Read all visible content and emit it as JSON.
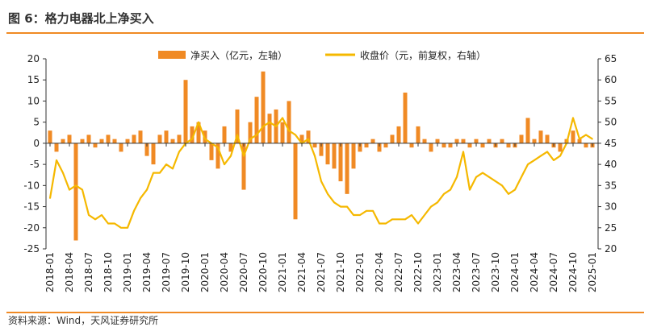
{
  "figure": {
    "title": "图 6：格力电器北上净买入",
    "source": "资料来源：Wind，天风证券研究所"
  },
  "colors": {
    "bar": "#f08a24",
    "line": "#f5b800",
    "rule": "#f08a24",
    "axis": "#333333"
  },
  "chart_data": {
    "type": "bar",
    "title": "",
    "xlabel": "",
    "ylabel": "",
    "grid": false,
    "legend_position": "top",
    "y_left": {
      "min": -25,
      "max": 20,
      "step": 5
    },
    "y_right": {
      "min": 20,
      "max": 65,
      "step": 5
    },
    "x_ticks": [
      "2018-01",
      "2018-04",
      "2018-07",
      "2018-10",
      "2019-01",
      "2019-04",
      "2019-07",
      "2019-10",
      "2020-01",
      "2020-04",
      "2020-07",
      "2020-10",
      "2021-01",
      "2021-04",
      "2021-07",
      "2021-10",
      "2022-01",
      "2022-04",
      "2022-07",
      "2022-10",
      "2023-01",
      "2023-04",
      "2023-07",
      "2023-10",
      "2024-01",
      "2024-04",
      "2024-07",
      "2024-10",
      "2025-01"
    ],
    "series": [
      {
        "name": "净买入（亿元，左轴）",
        "type": "bar",
        "axis": "left",
        "points": [
          [
            "2018-01",
            3
          ],
          [
            "2018-02",
            -2
          ],
          [
            "2018-03",
            1
          ],
          [
            "2018-04",
            2
          ],
          [
            "2018-05",
            -23
          ],
          [
            "2018-06",
            1
          ],
          [
            "2018-07",
            2
          ],
          [
            "2018-08",
            -1
          ],
          [
            "2018-09",
            1
          ],
          [
            "2018-10",
            2
          ],
          [
            "2018-11",
            1
          ],
          [
            "2018-12",
            -2
          ],
          [
            "2019-01",
            1
          ],
          [
            "2019-02",
            2
          ],
          [
            "2019-03",
            3
          ],
          [
            "2019-04",
            -3
          ],
          [
            "2019-05",
            -5
          ],
          [
            "2019-06",
            2
          ],
          [
            "2019-07",
            3
          ],
          [
            "2019-08",
            1
          ],
          [
            "2019-09",
            2
          ],
          [
            "2019-10",
            15
          ],
          [
            "2019-11",
            4
          ],
          [
            "2019-12",
            5
          ],
          [
            "2020-01",
            3
          ],
          [
            "2020-02",
            -4
          ],
          [
            "2020-03",
            -6
          ],
          [
            "2020-04",
            4
          ],
          [
            "2020-05",
            -2
          ],
          [
            "2020-06",
            8
          ],
          [
            "2020-07",
            -11
          ],
          [
            "2020-08",
            5
          ],
          [
            "2020-09",
            11
          ],
          [
            "2020-10",
            17
          ],
          [
            "2020-11",
            7
          ],
          [
            "2020-12",
            8
          ],
          [
            "2021-01",
            5
          ],
          [
            "2021-02",
            10
          ],
          [
            "2021-03",
            -18
          ],
          [
            "2021-04",
            2
          ],
          [
            "2021-05",
            3
          ],
          [
            "2021-06",
            -1
          ],
          [
            "2021-07",
            -3
          ],
          [
            "2021-08",
            -5
          ],
          [
            "2021-09",
            -6
          ],
          [
            "2021-10",
            -9
          ],
          [
            "2021-11",
            -12
          ],
          [
            "2021-12",
            -6
          ],
          [
            "2022-01",
            -2
          ],
          [
            "2022-02",
            -1
          ],
          [
            "2022-03",
            1
          ],
          [
            "2022-04",
            -2
          ],
          [
            "2022-05",
            -1
          ],
          [
            "2022-06",
            2
          ],
          [
            "2022-07",
            4
          ],
          [
            "2022-08",
            12
          ],
          [
            "2022-09",
            -1
          ],
          [
            "2022-10",
            4
          ],
          [
            "2022-11",
            1
          ],
          [
            "2022-12",
            -2
          ],
          [
            "2023-01",
            1
          ],
          [
            "2023-02",
            -1
          ],
          [
            "2023-03",
            -1
          ],
          [
            "2023-04",
            1
          ],
          [
            "2023-05",
            1
          ],
          [
            "2023-06",
            -1
          ],
          [
            "2023-07",
            1
          ],
          [
            "2023-08",
            -1
          ],
          [
            "2023-09",
            1
          ],
          [
            "2023-10",
            -1
          ],
          [
            "2023-11",
            1
          ],
          [
            "2023-12",
            -1
          ],
          [
            "2024-01",
            -1
          ],
          [
            "2024-02",
            2
          ],
          [
            "2024-03",
            6
          ],
          [
            "2024-04",
            1
          ],
          [
            "2024-05",
            3
          ],
          [
            "2024-06",
            2
          ],
          [
            "2024-07",
            -1
          ],
          [
            "2024-08",
            -2
          ],
          [
            "2024-09",
            1
          ],
          [
            "2024-10",
            3
          ],
          [
            "2024-11",
            1
          ],
          [
            "2024-12",
            -1
          ],
          [
            "2025-01",
            -1
          ]
        ]
      },
      {
        "name": "收盘价（元，前复权，右轴）",
        "type": "line",
        "axis": "right",
        "points": [
          [
            "2018-01",
            32
          ],
          [
            "2018-02",
            41
          ],
          [
            "2018-03",
            38
          ],
          [
            "2018-04",
            34
          ],
          [
            "2018-05",
            35
          ],
          [
            "2018-06",
            34
          ],
          [
            "2018-07",
            28
          ],
          [
            "2018-08",
            27
          ],
          [
            "2018-09",
            28
          ],
          [
            "2018-10",
            26
          ],
          [
            "2018-11",
            26
          ],
          [
            "2018-12",
            25
          ],
          [
            "2019-01",
            25
          ],
          [
            "2019-02",
            29
          ],
          [
            "2019-03",
            32
          ],
          [
            "2019-04",
            34
          ],
          [
            "2019-05",
            38
          ],
          [
            "2019-06",
            38
          ],
          [
            "2019-07",
            40
          ],
          [
            "2019-08",
            39
          ],
          [
            "2019-09",
            43
          ],
          [
            "2019-10",
            45
          ],
          [
            "2019-11",
            46
          ],
          [
            "2019-12",
            50
          ],
          [
            "2020-01",
            46
          ],
          [
            "2020-02",
            45
          ],
          [
            "2020-03",
            44
          ],
          [
            "2020-04",
            40
          ],
          [
            "2020-05",
            42
          ],
          [
            "2020-06",
            47
          ],
          [
            "2020-07",
            42
          ],
          [
            "2020-08",
            46
          ],
          [
            "2020-09",
            47
          ],
          [
            "2020-10",
            49
          ],
          [
            "2020-11",
            50
          ],
          [
            "2020-12",
            49
          ],
          [
            "2021-01",
            51
          ],
          [
            "2021-02",
            48
          ],
          [
            "2021-03",
            47
          ],
          [
            "2021-04",
            45
          ],
          [
            "2021-05",
            46
          ],
          [
            "2021-06",
            42
          ],
          [
            "2021-07",
            36
          ],
          [
            "2021-08",
            33
          ],
          [
            "2021-09",
            31
          ],
          [
            "2021-10",
            30
          ],
          [
            "2021-11",
            30
          ],
          [
            "2021-12",
            28
          ],
          [
            "2022-01",
            28
          ],
          [
            "2022-02",
            29
          ],
          [
            "2022-03",
            29
          ],
          [
            "2022-04",
            26
          ],
          [
            "2022-05",
            26
          ],
          [
            "2022-06",
            27
          ],
          [
            "2022-07",
            27
          ],
          [
            "2022-08",
            27
          ],
          [
            "2022-09",
            28
          ],
          [
            "2022-10",
            26
          ],
          [
            "2022-11",
            28
          ],
          [
            "2022-12",
            30
          ],
          [
            "2023-01",
            31
          ],
          [
            "2023-02",
            33
          ],
          [
            "2023-03",
            34
          ],
          [
            "2023-04",
            37
          ],
          [
            "2023-05",
            43
          ],
          [
            "2023-06",
            34
          ],
          [
            "2023-07",
            37
          ],
          [
            "2023-08",
            38
          ],
          [
            "2023-09",
            37
          ],
          [
            "2023-10",
            36
          ],
          [
            "2023-11",
            35
          ],
          [
            "2023-12",
            33
          ],
          [
            "2024-01",
            34
          ],
          [
            "2024-02",
            37
          ],
          [
            "2024-03",
            40
          ],
          [
            "2024-04",
            41
          ],
          [
            "2024-05",
            42
          ],
          [
            "2024-06",
            43
          ],
          [
            "2024-07",
            41
          ],
          [
            "2024-08",
            42
          ],
          [
            "2024-09",
            45
          ],
          [
            "2024-10",
            51
          ],
          [
            "2024-11",
            46
          ],
          [
            "2024-12",
            47
          ],
          [
            "2025-01",
            46
          ]
        ]
      }
    ]
  }
}
